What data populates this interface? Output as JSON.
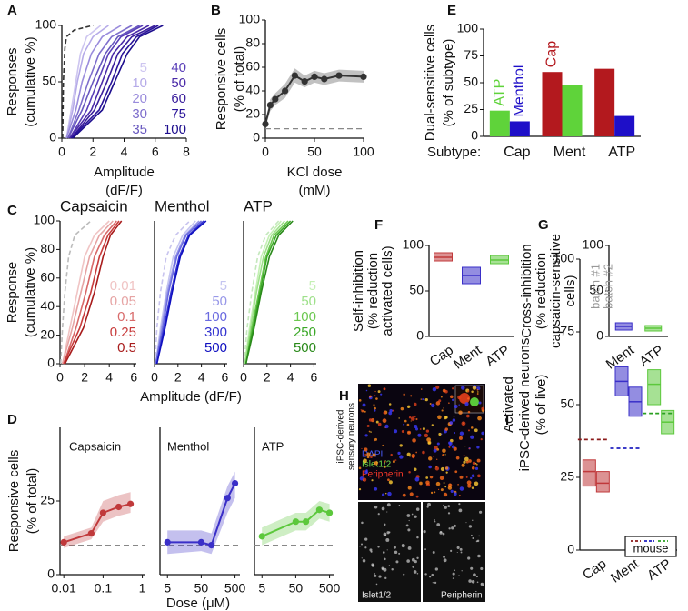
{
  "chart_data": [
    {
      "type": "cdf",
      "panel": "A",
      "ylabel": [
        "Responses",
        "(cumulative %)"
      ],
      "xlabel": [
        "Amplitude",
        "(dF/F)"
      ],
      "xlim": [
        0,
        8
      ],
      "xticks": [
        0,
        2,
        4,
        6,
        8
      ],
      "ylim": [
        0,
        100
      ],
      "yticks": [
        0,
        50,
        100
      ],
      "series": [
        {
          "color": "#333333",
          "dashed": true,
          "x": [
            0.05,
            0.1,
            0.2,
            0.3,
            0.8,
            2.0
          ],
          "values": [
            0,
            50,
            80,
            90,
            96,
            100
          ]
        },
        {
          "name": "5",
          "color": "#cdc5f0",
          "x": [
            0.3,
            0.6,
            0.9,
            1.2,
            1.6,
            2.5
          ],
          "values": [
            0,
            25,
            50,
            75,
            90,
            100
          ]
        },
        {
          "name": "10",
          "color": "#b5aae8",
          "x": [
            0.3,
            0.7,
            1.0,
            1.4,
            2.0,
            3.0
          ],
          "values": [
            0,
            25,
            50,
            75,
            90,
            100
          ]
        },
        {
          "name": "20",
          "color": "#9a8cdc",
          "x": [
            0.3,
            0.9,
            1.3,
            1.9,
            2.6,
            3.8
          ],
          "values": [
            0,
            25,
            50,
            75,
            90,
            100
          ]
        },
        {
          "name": "30",
          "color": "#7e6ecc",
          "x": [
            0.4,
            1.1,
            1.7,
            2.4,
            3.2,
            4.5
          ],
          "values": [
            0,
            25,
            50,
            75,
            90,
            100
          ]
        },
        {
          "name": "35",
          "color": "#6858bf",
          "x": [
            0.4,
            1.3,
            2.0,
            2.8,
            3.6,
            5.0
          ],
          "values": [
            0,
            25,
            50,
            75,
            90,
            100
          ]
        },
        {
          "name": "40",
          "color": "#5a3fb8",
          "x": [
            0.5,
            1.6,
            2.3,
            3.0,
            3.8,
            5.2
          ],
          "values": [
            0,
            25,
            50,
            75,
            90,
            100
          ]
        },
        {
          "name": "50",
          "color": "#4a2aa8",
          "x": [
            0.5,
            1.9,
            2.6,
            3.3,
            4.2,
            5.6
          ],
          "values": [
            0,
            25,
            50,
            75,
            90,
            100
          ]
        },
        {
          "name": "60",
          "color": "#3a1e9c",
          "x": [
            0.6,
            2.1,
            2.9,
            3.6,
            4.5,
            6.0
          ],
          "values": [
            0,
            25,
            50,
            75,
            90,
            100
          ]
        },
        {
          "name": "75",
          "color": "#2a149a",
          "x": [
            0.6,
            2.4,
            3.2,
            3.9,
            4.8,
            6.2
          ],
          "values": [
            0,
            25,
            50,
            75,
            90,
            100
          ]
        },
        {
          "name": "100",
          "color": "#1e0e8e",
          "x": [
            0.7,
            2.6,
            3.4,
            4.2,
            5.0,
            6.5
          ],
          "values": [
            0,
            25,
            50,
            75,
            90,
            100
          ]
        }
      ]
    },
    {
      "type": "line",
      "panel": "B",
      "ylabel": [
        "Responsive cells",
        "(% of total)"
      ],
      "xlabel": [
        "KCl dose",
        "(mM)"
      ],
      "xlim": [
        0,
        100
      ],
      "xticks": [
        0,
        50,
        100
      ],
      "ylim": [
        0,
        100
      ],
      "yticks": [
        0,
        20,
        40,
        60,
        80,
        100
      ],
      "baseline": 8,
      "x": [
        0,
        5,
        10,
        20,
        30,
        40,
        50,
        60,
        75,
        100
      ],
      "series": [
        {
          "color": "#333333",
          "values": [
            12,
            28,
            33,
            40,
            53,
            48,
            52,
            50,
            53,
            52
          ],
          "ci_low": [
            9,
            23,
            28,
            34,
            47,
            43,
            47,
            45,
            48,
            47
          ],
          "ci_high": [
            15,
            33,
            38,
            46,
            59,
            53,
            57,
            55,
            58,
            57
          ]
        }
      ]
    },
    {
      "type": "bar",
      "panel": "E",
      "ylabel": [
        "Dual-sensitive cells",
        "(% of subtype)"
      ],
      "xlabel": [
        "Subtype:"
      ],
      "categories": [
        "Cap",
        "Ment",
        "ATP"
      ],
      "ylim": [
        0,
        100
      ],
      "yticks": [
        0,
        25,
        50,
        75,
        100
      ],
      "series": [
        {
          "name": "Cap",
          "color": "#b3191e",
          "values": [
            null,
            60,
            63
          ]
        },
        {
          "name": "ATP",
          "color": "#5fd33a",
          "values": [
            24,
            48,
            null
          ]
        },
        {
          "name": "Menthol",
          "color": "#1e0fc8",
          "values": [
            14,
            null,
            19
          ]
        }
      ]
    },
    {
      "type": "cdf",
      "panel": "C",
      "title": "Capsaicin",
      "ylabel": [
        "Response",
        "(cumulative %)"
      ],
      "xlabel": [
        "Amplitude (dF/F)"
      ],
      "xlim": [
        0,
        6.2
      ],
      "xticks": [
        0,
        2,
        4,
        6
      ],
      "ylim": [
        0,
        100
      ],
      "yticks": [
        0,
        20,
        40,
        60,
        80,
        100
      ],
      "series": [
        {
          "color": "#bbbbbb",
          "dashed": true,
          "x": [
            0.05,
            0.2,
            0.4,
            0.7,
            1.2,
            2.5
          ],
          "values": [
            0,
            25,
            50,
            75,
            90,
            100
          ]
        },
        {
          "name": "0.01",
          "color": "#f0c4c4",
          "x": [
            0.2,
            0.8,
            1.4,
            2.0,
            2.8,
            4.0
          ],
          "values": [
            0,
            25,
            50,
            75,
            90,
            100
          ]
        },
        {
          "name": "0.05",
          "color": "#e6a4a4",
          "x": [
            0.2,
            1.0,
            1.7,
            2.4,
            3.2,
            4.3
          ],
          "values": [
            0,
            25,
            50,
            75,
            90,
            100
          ]
        },
        {
          "name": "0.1",
          "color": "#d86a6a",
          "x": [
            0.3,
            1.3,
            2.1,
            2.8,
            3.6,
            4.6
          ],
          "values": [
            0,
            25,
            50,
            75,
            90,
            100
          ]
        },
        {
          "name": "0.25",
          "color": "#c83c3c",
          "x": [
            0.3,
            1.6,
            2.5,
            3.2,
            3.9,
            4.8
          ],
          "values": [
            0,
            25,
            50,
            75,
            90,
            100
          ]
        },
        {
          "name": "0.5",
          "color": "#a81c1c",
          "x": [
            0.4,
            1.9,
            2.8,
            3.5,
            4.1,
            5.0
          ],
          "values": [
            0,
            25,
            50,
            75,
            90,
            100
          ]
        }
      ]
    },
    {
      "type": "cdf",
      "title": "Menthol",
      "xlim": [
        0,
        6.2
      ],
      "xticks": [
        0,
        2,
        4,
        6
      ],
      "ylim": [
        0,
        100
      ],
      "series": [
        {
          "color": "#c8c4ee",
          "dashed": true,
          "x": [
            0.05,
            0.2,
            0.5,
            1.0,
            1.8,
            3.0
          ],
          "values": [
            0,
            25,
            50,
            75,
            90,
            100
          ]
        },
        {
          "name": "5",
          "color": "#c4c4f0",
          "x": [
            0.1,
            0.5,
            1.0,
            1.6,
            2.4,
            3.5
          ],
          "values": [
            0,
            25,
            50,
            75,
            90,
            100
          ]
        },
        {
          "name": "50",
          "color": "#9898e8",
          "x": [
            0.1,
            0.6,
            1.1,
            1.8,
            2.6,
            3.8
          ],
          "values": [
            0,
            25,
            50,
            75,
            90,
            100
          ]
        },
        {
          "name": "100",
          "color": "#6a6ae0",
          "x": [
            0.1,
            0.7,
            1.2,
            1.9,
            2.7,
            4.0
          ],
          "values": [
            0,
            25,
            50,
            75,
            90,
            100
          ]
        },
        {
          "name": "300",
          "color": "#3434d0",
          "x": [
            0.2,
            0.8,
            1.4,
            2.1,
            2.9,
            4.2
          ],
          "values": [
            0,
            25,
            50,
            75,
            90,
            100
          ]
        },
        {
          "name": "500",
          "color": "#1010c0",
          "x": [
            0.2,
            0.9,
            1.5,
            2.2,
            3.0,
            4.4
          ],
          "values": [
            0,
            25,
            50,
            75,
            90,
            100
          ]
        }
      ]
    },
    {
      "type": "cdf",
      "title": "ATP",
      "xlim": [
        0,
        6.2
      ],
      "xticks": [
        0,
        2,
        4,
        6
      ],
      "ylim": [
        0,
        100
      ],
      "series": [
        {
          "color": "#c4e8bc",
          "dashed": true,
          "x": [
            0.05,
            0.3,
            0.7,
            1.2,
            1.9,
            3.0
          ],
          "values": [
            0,
            25,
            50,
            75,
            90,
            100
          ]
        },
        {
          "name": "5",
          "color": "#c4f0b4",
          "x": [
            0.1,
            0.5,
            1.0,
            1.5,
            2.2,
            3.2
          ],
          "values": [
            0,
            25,
            50,
            75,
            90,
            100
          ]
        },
        {
          "name": "50",
          "color": "#9ee08a",
          "x": [
            0.1,
            0.6,
            1.1,
            1.7,
            2.4,
            3.5
          ],
          "values": [
            0,
            25,
            50,
            75,
            90,
            100
          ]
        },
        {
          "name": "100",
          "color": "#6cc850",
          "x": [
            0.2,
            0.7,
            1.3,
            1.9,
            2.6,
            3.8
          ],
          "values": [
            0,
            25,
            50,
            75,
            90,
            100
          ]
        },
        {
          "name": "250",
          "color": "#3ca828",
          "x": [
            0.2,
            0.8,
            1.4,
            2.0,
            2.8,
            4.0
          ],
          "values": [
            0,
            25,
            50,
            75,
            90,
            100
          ]
        },
        {
          "name": "500",
          "color": "#2a8a1a",
          "x": [
            0.2,
            0.9,
            1.5,
            2.2,
            3.0,
            4.2
          ],
          "values": [
            0,
            25,
            50,
            75,
            90,
            100
          ]
        }
      ]
    },
    {
      "type": "line",
      "panel": "D",
      "title": "Capsaicin",
      "ylabel": [
        "Responsive cells",
        "(% of total)"
      ],
      "xlabel": [
        "Dose (μM)"
      ],
      "xlog": true,
      "xlim": [
        0.008,
        1.2
      ],
      "xticks": [
        0.01,
        0.1,
        1
      ],
      "ylim": [
        0,
        50
      ],
      "yticks": [
        0,
        25
      ],
      "baseline": 10,
      "x": [
        0.01,
        0.05,
        0.1,
        0.25,
        0.5
      ],
      "series": [
        {
          "color": "#c0393b",
          "values": [
            11,
            14,
            21,
            23,
            24
          ],
          "ci_low": [
            9,
            12,
            18,
            20,
            21
          ],
          "ci_high": [
            13,
            16,
            25,
            27,
            28
          ]
        }
      ]
    },
    {
      "type": "line",
      "title": "Menthol",
      "xlog": true,
      "xlim": [
        3,
        700
      ],
      "xticks": [
        5,
        50,
        500
      ],
      "ylim": [
        0,
        50
      ],
      "baseline": 10,
      "x": [
        5,
        50,
        100,
        300,
        500
      ],
      "series": [
        {
          "color": "#3a2fc8",
          "values": [
            11,
            11,
            10,
            26,
            31
          ],
          "ci_low": [
            7,
            8,
            7,
            21,
            26
          ],
          "ci_high": [
            15,
            15,
            14,
            30,
            35
          ]
        }
      ]
    },
    {
      "type": "line",
      "title": "ATP",
      "xlog": true,
      "xlim": [
        3,
        700
      ],
      "xticks": [
        5,
        50,
        500
      ],
      "ylim": [
        0,
        50
      ],
      "baseline": 10,
      "x": [
        5,
        50,
        100,
        250,
        500
      ],
      "series": [
        {
          "color": "#5cc83c",
          "values": [
            13,
            18,
            18,
            22,
            21
          ],
          "ci_low": [
            10,
            15,
            15,
            19,
            18
          ],
          "ci_high": [
            16,
            21,
            21,
            25,
            24
          ]
        }
      ]
    },
    {
      "type": "box",
      "panel": "F",
      "ylabel": [
        "Self-inhibition",
        "(% reduction",
        "activated cells)"
      ],
      "categories": [
        "Cap",
        "Ment",
        "ATP"
      ],
      "colors": [
        "#c0393b",
        "#3a2fc8",
        "#5cc83c"
      ],
      "ylim": [
        0,
        100
      ],
      "yticks": [
        0,
        50,
        100
      ],
      "series": [
        {
          "median": [
            87,
            67,
            84
          ],
          "q1": [
            83,
            58,
            80
          ],
          "q3": [
            92,
            76,
            89
          ]
        }
      ]
    },
    {
      "type": "box",
      "panel": "G",
      "ylabel": [
        "Cross-inhibition",
        "(% reduction",
        "capsaicin-sensitive",
        "cells)"
      ],
      "categories": [
        "Ment",
        "ATP"
      ],
      "colors": [
        "#3a2fc8",
        "#5cc83c"
      ],
      "ylim": [
        0,
        100
      ],
      "yticks": [
        0,
        50,
        100
      ],
      "series": [
        {
          "median": [
            11,
            9
          ],
          "q1": [
            7,
            6
          ],
          "q3": [
            15,
            12
          ]
        }
      ]
    },
    {
      "type": "box",
      "panel": "I",
      "ylabel": [
        "Activated",
        "iPSC-derived neurons",
        "(% of live)"
      ],
      "categories": [
        "Cap",
        "Ment",
        "ATP"
      ],
      "colors": [
        "#c0393b",
        "#3a2fc8",
        "#5cc83c"
      ],
      "ylim": [
        0,
        100
      ],
      "yticks": [
        0,
        25,
        50,
        75,
        100
      ],
      "series": [
        {
          "name": "batch #1",
          "median": [
            27,
            58,
            57
          ],
          "q1": [
            22,
            53,
            50
          ],
          "q3": [
            31,
            63,
            62
          ]
        },
        {
          "name": "batch #2",
          "median": [
            23,
            51,
            44
          ],
          "q1": [
            20,
            46,
            40
          ],
          "q3": [
            27,
            56,
            48
          ]
        }
      ],
      "reference": {
        "name": "mouse",
        "values": [
          38,
          35,
          47
        ],
        "colors": [
          "#8b1a1a",
          "#2020c0",
          "#2aa020"
        ]
      }
    }
  ],
  "image_panel": {
    "panel": "H",
    "side_label": [
      "iPSC-derived",
      "sensory neurons"
    ],
    "channels": [
      "DAPI",
      "Islet1/2",
      "Peripherin"
    ],
    "sub_labels": [
      "Islet1/2",
      "Peripherin"
    ]
  }
}
